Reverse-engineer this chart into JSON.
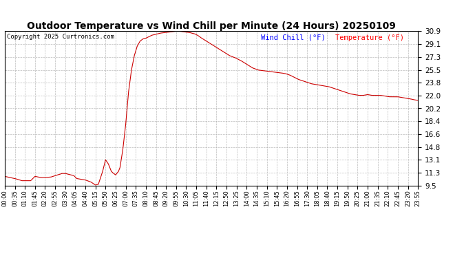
{
  "title": "Outdoor Temperature vs Wind Chill per Minute (24 Hours) 20250109",
  "copyright": "Copyright 2025 Curtronics.com",
  "legend_wind_chill": "Wind Chill (°F)",
  "legend_temperature": "Temperature (°F)",
  "legend_wind_chill_color": "#0000ff",
  "legend_temperature_color": "#ff0000",
  "line_color": "#cc0000",
  "background_color": "#ffffff",
  "grid_color": "#aaaaaa",
  "ylim": [
    9.5,
    30.9
  ],
  "yticks": [
    9.5,
    11.3,
    13.1,
    14.8,
    16.6,
    18.4,
    20.2,
    22.0,
    23.8,
    25.5,
    27.3,
    29.1,
    30.9
  ],
  "xtick_interval": 35,
  "title_fontsize": 10,
  "title_color": "#000000",
  "minutes_per_day": 1435,
  "time_labels": [
    "00:00",
    "00:35",
    "01:10",
    "01:45",
    "02:20",
    "02:55",
    "03:30",
    "04:05",
    "04:40",
    "05:15",
    "05:50",
    "06:25",
    "07:00",
    "07:35",
    "08:10",
    "08:45",
    "09:20",
    "09:55",
    "10:30",
    "11:05",
    "11:40",
    "12:15",
    "12:50",
    "13:25",
    "14:00",
    "14:35",
    "15:10",
    "15:45",
    "16:20",
    "16:55",
    "17:30",
    "18:05",
    "18:40",
    "19:15",
    "19:50",
    "20:25",
    "21:00",
    "21:35",
    "22:10",
    "22:45",
    "23:20",
    "23:55"
  ],
  "data_keypoints": [
    [
      0,
      10.8
    ],
    [
      35,
      10.5
    ],
    [
      60,
      10.2
    ],
    [
      90,
      10.2
    ],
    [
      105,
      10.8
    ],
    [
      130,
      10.6
    ],
    [
      160,
      10.7
    ],
    [
      175,
      10.9
    ],
    [
      200,
      11.2
    ],
    [
      210,
      11.2
    ],
    [
      240,
      10.9
    ],
    [
      250,
      10.5
    ],
    [
      280,
      10.3
    ],
    [
      300,
      10.0
    ],
    [
      315,
      9.6
    ],
    [
      325,
      9.7
    ],
    [
      340,
      11.5
    ],
    [
      350,
      13.1
    ],
    [
      360,
      12.5
    ],
    [
      370,
      11.5
    ],
    [
      375,
      11.3
    ],
    [
      385,
      11.0
    ],
    [
      395,
      11.5
    ],
    [
      400,
      12.0
    ],
    [
      410,
      14.5
    ],
    [
      420,
      18.0
    ],
    [
      430,
      22.5
    ],
    [
      440,
      25.5
    ],
    [
      450,
      27.5
    ],
    [
      460,
      28.8
    ],
    [
      470,
      29.5
    ],
    [
      480,
      29.8
    ],
    [
      490,
      29.9
    ],
    [
      500,
      30.1
    ],
    [
      510,
      30.3
    ],
    [
      520,
      30.4
    ],
    [
      530,
      30.5
    ],
    [
      540,
      30.6
    ],
    [
      550,
      30.65
    ],
    [
      560,
      30.7
    ],
    [
      570,
      30.75
    ],
    [
      580,
      30.8
    ],
    [
      590,
      30.85
    ],
    [
      600,
      30.9
    ],
    [
      610,
      30.85
    ],
    [
      620,
      30.8
    ],
    [
      630,
      30.75
    ],
    [
      640,
      30.7
    ],
    [
      650,
      30.6
    ],
    [
      660,
      30.5
    ],
    [
      670,
      30.3
    ],
    [
      680,
      30.0
    ],
    [
      700,
      29.5
    ],
    [
      720,
      29.0
    ],
    [
      740,
      28.5
    ],
    [
      760,
      28.0
    ],
    [
      780,
      27.5
    ],
    [
      800,
      27.2
    ],
    [
      820,
      26.8
    ],
    [
      840,
      26.3
    ],
    [
      860,
      25.8
    ],
    [
      880,
      25.5
    ],
    [
      900,
      25.4
    ],
    [
      920,
      25.3
    ],
    [
      940,
      25.2
    ],
    [
      960,
      25.1
    ],
    [
      975,
      25.0
    ],
    [
      990,
      24.8
    ],
    [
      1005,
      24.5
    ],
    [
      1020,
      24.2
    ],
    [
      1035,
      24.0
    ],
    [
      1050,
      23.8
    ],
    [
      1065,
      23.6
    ],
    [
      1080,
      23.5
    ],
    [
      1095,
      23.4
    ],
    [
      1110,
      23.3
    ],
    [
      1125,
      23.2
    ],
    [
      1140,
      23.0
    ],
    [
      1155,
      22.8
    ],
    [
      1170,
      22.6
    ],
    [
      1185,
      22.4
    ],
    [
      1200,
      22.2
    ],
    [
      1215,
      22.1
    ],
    [
      1230,
      22.0
    ],
    [
      1245,
      22.0
    ],
    [
      1260,
      22.1
    ],
    [
      1275,
      22.0
    ],
    [
      1290,
      22.0
    ],
    [
      1305,
      22.0
    ],
    [
      1320,
      21.9
    ],
    [
      1335,
      21.8
    ],
    [
      1350,
      21.8
    ],
    [
      1365,
      21.8
    ],
    [
      1380,
      21.7
    ],
    [
      1395,
      21.6
    ],
    [
      1410,
      21.5
    ],
    [
      1420,
      21.4
    ],
    [
      1435,
      21.3
    ]
  ]
}
